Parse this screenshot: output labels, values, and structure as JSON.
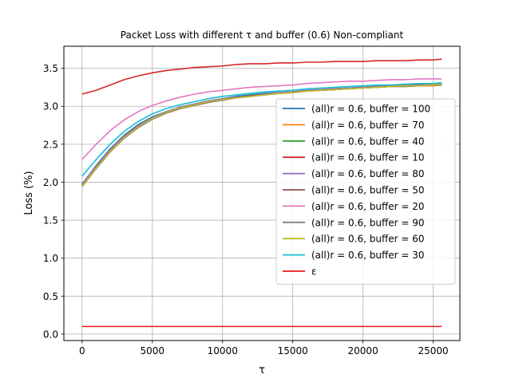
{
  "chart_data": {
    "type": "line",
    "title": "Packet Loss with different τ and buffer (0.6) Non-compliant",
    "xlabel": "τ",
    "ylabel": "Loss (%)",
    "xlim": [
      -1300,
      26900
    ],
    "ylim": [
      -0.085,
      3.79
    ],
    "xticks": [
      0,
      5000,
      10000,
      15000,
      20000,
      25000
    ],
    "yticks": [
      0.0,
      0.5,
      1.0,
      1.5,
      2.0,
      2.5,
      3.0,
      3.5
    ],
    "x_tick_labels": [
      "0",
      "5000",
      "10000",
      "15000",
      "20000",
      "25000"
    ],
    "y_tick_labels": [
      "0.0",
      "0.5",
      "1.0",
      "1.5",
      "2.0",
      "2.5",
      "3.0",
      "3.5"
    ],
    "grid": true,
    "legend_position": "center-right",
    "x": [
      0,
      1000,
      2000,
      3000,
      4000,
      5000,
      6000,
      7000,
      8000,
      9000,
      10000,
      11000,
      12000,
      13000,
      14000,
      15000,
      16000,
      17000,
      18000,
      19000,
      20000,
      21000,
      22000,
      23000,
      24000,
      25000,
      25600
    ],
    "series": [
      {
        "name": "(all)r = 0.6, buffer = 100",
        "color": "#1f77b4",
        "values": [
          1.97,
          2.22,
          2.44,
          2.62,
          2.76,
          2.86,
          2.93,
          2.99,
          3.03,
          3.07,
          3.1,
          3.13,
          3.15,
          3.17,
          3.18,
          3.19,
          3.21,
          3.22,
          3.23,
          3.24,
          3.25,
          3.26,
          3.27,
          3.28,
          3.29,
          3.29,
          3.3
        ]
      },
      {
        "name": "(all)r = 0.6, buffer = 70",
        "color": "#ff7f0e",
        "values": [
          1.95,
          2.18,
          2.4,
          2.58,
          2.72,
          2.83,
          2.91,
          2.97,
          3.01,
          3.05,
          3.08,
          3.11,
          3.13,
          3.15,
          3.17,
          3.18,
          3.2,
          3.21,
          3.22,
          3.23,
          3.24,
          3.25,
          3.26,
          3.26,
          3.27,
          3.27,
          3.28
        ]
      },
      {
        "name": "(all)r = 0.6, buffer = 40",
        "color": "#2ca02c",
        "values": [
          1.96,
          2.2,
          2.42,
          2.6,
          2.74,
          2.84,
          2.92,
          2.98,
          3.02,
          3.06,
          3.09,
          3.12,
          3.14,
          3.16,
          3.17,
          3.19,
          3.2,
          3.21,
          3.23,
          3.24,
          3.25,
          3.26,
          3.26,
          3.27,
          3.28,
          3.29,
          3.29
        ]
      },
      {
        "name": "(all)r = 0.6, buffer = 10",
        "color": "#d62728",
        "values": [
          3.16,
          3.21,
          3.28,
          3.35,
          3.4,
          3.44,
          3.47,
          3.49,
          3.51,
          3.52,
          3.53,
          3.55,
          3.56,
          3.56,
          3.57,
          3.57,
          3.58,
          3.58,
          3.59,
          3.59,
          3.59,
          3.6,
          3.6,
          3.6,
          3.61,
          3.61,
          3.62
        ]
      },
      {
        "name": "(all)r = 0.6, buffer = 80",
        "color": "#9467bd",
        "values": [
          1.98,
          2.21,
          2.43,
          2.61,
          2.75,
          2.85,
          2.93,
          2.99,
          3.03,
          3.07,
          3.1,
          3.12,
          3.14,
          3.16,
          3.18,
          3.19,
          3.21,
          3.22,
          3.23,
          3.24,
          3.25,
          3.26,
          3.27,
          3.28,
          3.28,
          3.29,
          3.3
        ]
      },
      {
        "name": "(all)r = 0.6, buffer = 50",
        "color": "#8c564b",
        "values": [
          1.95,
          2.19,
          2.41,
          2.59,
          2.73,
          2.83,
          2.91,
          2.97,
          3.02,
          3.05,
          3.09,
          3.11,
          3.14,
          3.15,
          3.17,
          3.18,
          3.2,
          3.21,
          3.22,
          3.23,
          3.24,
          3.25,
          3.26,
          3.27,
          3.27,
          3.28,
          3.28
        ]
      },
      {
        "name": "(all)r = 0.6, buffer = 20",
        "color": "#e377c2",
        "values": [
          2.3,
          2.5,
          2.68,
          2.82,
          2.93,
          3.01,
          3.07,
          3.12,
          3.16,
          3.19,
          3.21,
          3.23,
          3.25,
          3.26,
          3.27,
          3.28,
          3.3,
          3.31,
          3.32,
          3.33,
          3.33,
          3.34,
          3.35,
          3.35,
          3.36,
          3.36,
          3.36
        ]
      },
      {
        "name": "(all)r = 0.6, buffer = 90",
        "color": "#7f7f7f",
        "values": [
          1.94,
          2.18,
          2.4,
          2.58,
          2.72,
          2.83,
          2.91,
          2.97,
          3.01,
          3.05,
          3.08,
          3.11,
          3.13,
          3.15,
          3.17,
          3.18,
          3.2,
          3.21,
          3.22,
          3.23,
          3.24,
          3.25,
          3.26,
          3.26,
          3.27,
          3.28,
          3.28
        ]
      },
      {
        "name": "(all)r = 0.6, buffer = 60",
        "color": "#bcbd22",
        "values": [
          1.95,
          2.19,
          2.41,
          2.59,
          2.73,
          2.84,
          2.92,
          2.98,
          3.02,
          3.06,
          3.09,
          3.11,
          3.13,
          3.15,
          3.17,
          3.18,
          3.2,
          3.21,
          3.22,
          3.23,
          3.24,
          3.25,
          3.26,
          3.27,
          3.27,
          3.28,
          3.29
        ]
      },
      {
        "name": "(all)r = 0.6, buffer = 30",
        "color": "#17becf",
        "values": [
          2.08,
          2.3,
          2.5,
          2.67,
          2.8,
          2.9,
          2.97,
          3.02,
          3.06,
          3.1,
          3.13,
          3.15,
          3.17,
          3.19,
          3.2,
          3.21,
          3.23,
          3.24,
          3.25,
          3.26,
          3.27,
          3.28,
          3.28,
          3.29,
          3.3,
          3.3,
          3.31
        ]
      },
      {
        "name": "ε",
        "color": "#e31a1c",
        "values": [
          0.1,
          0.1,
          0.1,
          0.1,
          0.1,
          0.1,
          0.1,
          0.1,
          0.1,
          0.1,
          0.1,
          0.1,
          0.1,
          0.1,
          0.1,
          0.1,
          0.1,
          0.1,
          0.1,
          0.1,
          0.1,
          0.1,
          0.1,
          0.1,
          0.1,
          0.1,
          0.1
        ]
      }
    ]
  }
}
